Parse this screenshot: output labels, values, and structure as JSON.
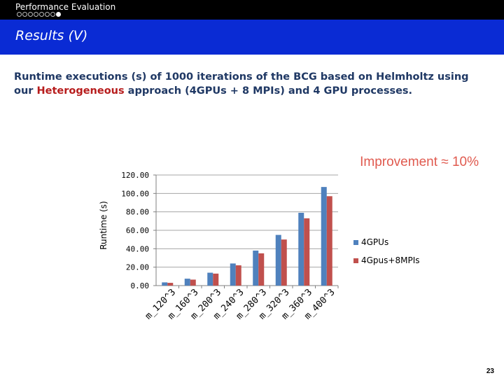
{
  "header": {
    "section": "Performance Evaluation",
    "progress_dots": 8,
    "active_dot": 8,
    "title": "Results (V)"
  },
  "description": {
    "part1": "Runtime executions (s)  of 1000 iterations of the BCG based on Helmholtz using our ",
    "highlight": "Heterogeneous",
    "part2": " approach  (4GPUs + 8 MPIs) and 4 GPU processes."
  },
  "annotation": "Improvement ≈ 10%",
  "chart_data": {
    "type": "bar",
    "categories": [
      "m_120^3",
      "m_160^3",
      "m_200^3",
      "m_240^3",
      "m_280^3",
      "m_320^3",
      "m_360^3",
      "m_400^3"
    ],
    "series": [
      {
        "name": "4GPUs",
        "color": "#4f81bd",
        "values": [
          3.5,
          7.5,
          14,
          24,
          38,
          55,
          79,
          107
        ]
      },
      {
        "name": "4Gpus+8MPIs",
        "color": "#c0504d",
        "values": [
          3,
          6.5,
          13,
          22,
          35,
          50,
          73,
          97
        ]
      }
    ],
    "ylabel": "Runtime (s)",
    "ylim": [
      0,
      120
    ],
    "yticks": [
      "0.00",
      "20.00",
      "40.00",
      "60.00",
      "80.00",
      "100.00",
      "120.00"
    ],
    "ytick_values": [
      0,
      20,
      40,
      60,
      80,
      100,
      120
    ],
    "grid": true,
    "legend": "right"
  },
  "page_number": "23"
}
